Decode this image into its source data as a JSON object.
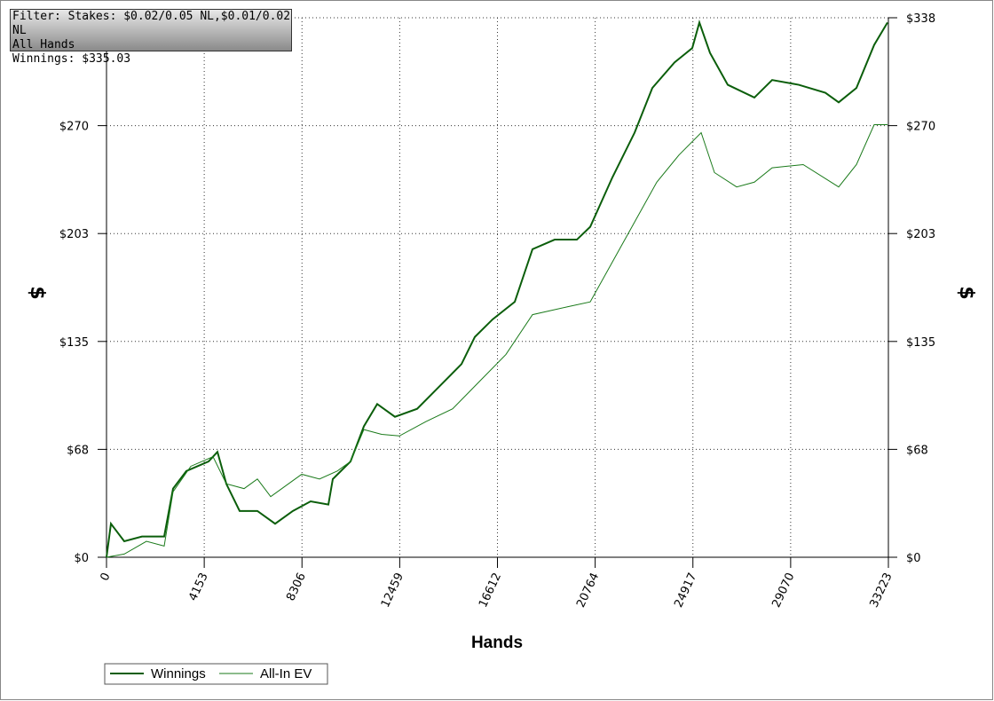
{
  "chart_data": {
    "type": "line",
    "filter_lines": [
      "Filter: Stakes: $0.02/0.05 NL,$0.01/0.02 NL",
      "All Hands",
      "Winnings: $335.03"
    ],
    "x_label": "Hands",
    "y_label": "$",
    "y2_label": "$",
    "xlim": [
      0,
      33223
    ],
    "xticks": [
      0,
      4153,
      8306,
      12459,
      16612,
      20764,
      24917,
      29070,
      33223
    ],
    "ylim": [
      0,
      338
    ],
    "yticks": [
      {
        "value": 0,
        "label": "$0"
      },
      {
        "value": 67.6,
        "label": "$68"
      },
      {
        "value": 135.2,
        "label": "$135"
      },
      {
        "value": 202.8,
        "label": "$203"
      },
      {
        "value": 270.4,
        "label": "$270"
      },
      {
        "value": 338,
        "label": "$338"
      }
    ],
    "grid": true,
    "series": [
      {
        "name": "Winnings",
        "color": "#0b5e0b",
        "x": [
          0,
          189,
          754,
          1508,
          2451,
          2828,
          3394,
          4337,
          4714,
          5091,
          5657,
          6411,
          7165,
          7919,
          8673,
          9428,
          9616,
          10370,
          10936,
          11502,
          12256,
          13199,
          14141,
          15084,
          15650,
          16404,
          17347,
          18101,
          19044,
          19987,
          20553,
          21496,
          22439,
          23193,
          24136,
          24890,
          25192,
          25643,
          26398,
          27529,
          28283,
          29414,
          30545,
          31111,
          31865,
          32619,
          33185
        ],
        "values": [
          0,
          21,
          10,
          13,
          13,
          43,
          54,
          60,
          66,
          46,
          29,
          29,
          21,
          29,
          35,
          33,
          49,
          60,
          82,
          96,
          88,
          93,
          107,
          121,
          138,
          149,
          160,
          193,
          199,
          199,
          207,
          238,
          266,
          294,
          310,
          319,
          335,
          316,
          296,
          288,
          299,
          296,
          291,
          285,
          294,
          321,
          335
        ]
      },
      {
        "name": "All-In EV",
        "color": "#1a7a1a",
        "x": [
          0,
          754,
          1697,
          2451,
          2828,
          3583,
          4526,
          5091,
          5845,
          6411,
          6977,
          8296,
          9050,
          9805,
          10370,
          10936,
          11691,
          12445,
          13576,
          14707,
          15838,
          16969,
          18101,
          19609,
          20553,
          21496,
          22439,
          23382,
          24325,
          25268,
          25833,
          26776,
          27529,
          28283,
          29603,
          31111,
          31865,
          32619,
          33185
        ],
        "values": [
          0,
          2,
          10,
          7,
          41,
          57,
          63,
          46,
          43,
          49,
          38,
          52,
          49,
          54,
          60,
          80,
          77,
          76,
          85,
          93,
          110,
          127,
          152,
          157,
          160,
          185,
          210,
          235,
          252,
          266,
          241,
          232,
          235,
          244,
          246,
          232,
          246,
          271,
          271
        ]
      }
    ]
  }
}
